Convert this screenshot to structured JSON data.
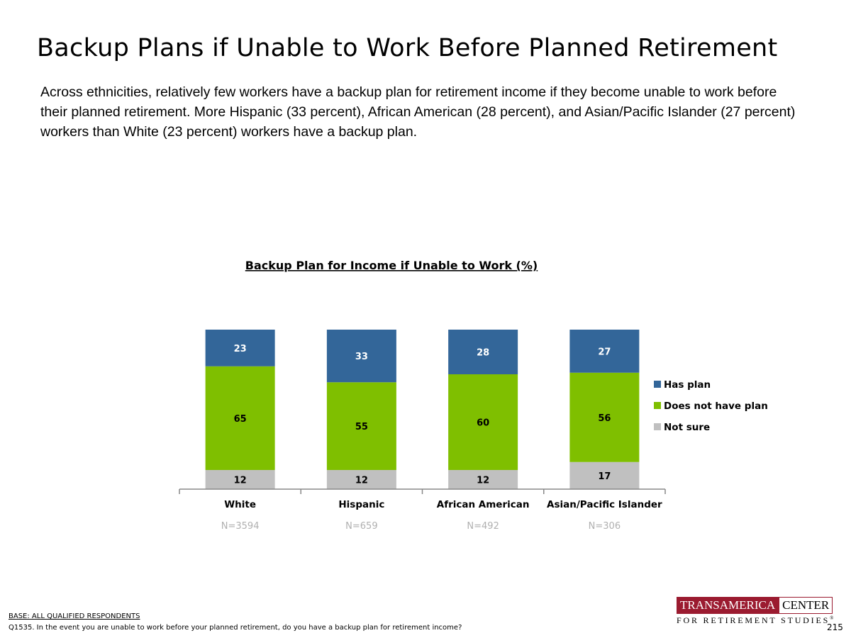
{
  "page": {
    "title": "Backup Plans if Unable to Work Before Planned Retirement",
    "summary": "Across ethnicities, relatively few workers have a backup plan for retirement income if they become unable to work before their planned retirement. More Hispanic (33 percent), African American (28 percent), and Asian/Pacific Islander (27 percent) workers than White (23 percent) workers have a backup plan."
  },
  "chart_data": {
    "type": "bar",
    "stacked": true,
    "title": "Backup Plan for Income if Unable to Work (%)",
    "categories": [
      "White",
      "Hispanic",
      "African American",
      "Asian/Pacific Islander"
    ],
    "sample_sizes": [
      "N=3594",
      "N=659",
      "N=492",
      "N=306"
    ],
    "series": [
      {
        "name": "Not sure",
        "values": [
          12,
          12,
          12,
          17
        ],
        "color": "#c0c0c0",
        "label_color": "#000000"
      },
      {
        "name": "Does not have plan",
        "values": [
          65,
          55,
          60,
          56
        ],
        "color": "#7fbf00",
        "label_color": "#000000"
      },
      {
        "name": "Has plan",
        "values": [
          23,
          33,
          28,
          27
        ],
        "color": "#336699",
        "label_color": "#ffffff"
      }
    ],
    "legend_order": [
      "Has plan",
      "Does not have plan",
      "Not sure"
    ],
    "legend_position": "right",
    "grid": false
  },
  "footer": {
    "base": "BASE: ALL QUALIFIED RESPONDENTS",
    "question": "Q1535. In the event you are unable to work before your planned retirement, do you have a backup plan for retirement income?",
    "page_number": "215"
  },
  "logo": {
    "left_text": "TRANSAMERICA",
    "right_text": "CENTER",
    "bottom_text": "FOR RETIREMENT STUDIES",
    "mark": "®",
    "brand_color": "#9b1b30"
  }
}
